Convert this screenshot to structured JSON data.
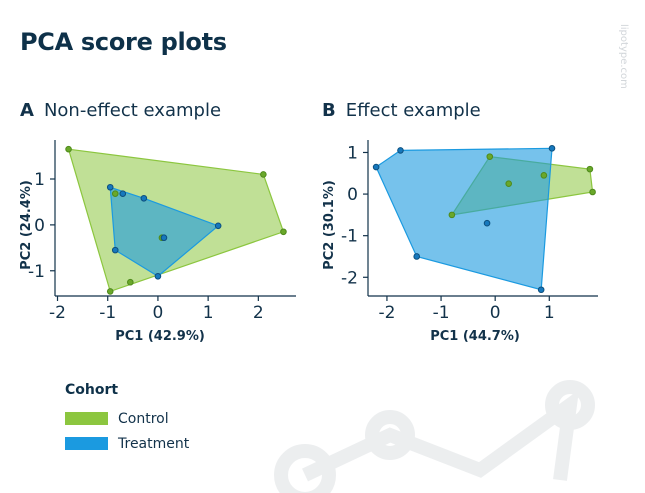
{
  "title": "PCA score plots",
  "watermark": "lipotype.com",
  "colors": {
    "control": "#8cc63f",
    "treatment": "#1b9ae0",
    "axis": "#12324a",
    "text": "#12324a"
  },
  "legend": {
    "title": "Cohort",
    "items": [
      {
        "label": "Control",
        "color": "#8cc63f"
      },
      {
        "label": "Treatment",
        "color": "#1b9ae0"
      }
    ]
  },
  "chart_data": [
    {
      "type": "scatter",
      "panel_letter": "A",
      "title": "Non-effect example",
      "xlabel": "PC1 (42.9%)",
      "ylabel": "PC2 (24.4%)",
      "xlim": [
        -2.05,
        2.75
      ],
      "ylim": [
        -1.55,
        1.85
      ],
      "xticks": [
        -2,
        -1,
        0,
        1,
        2
      ],
      "yticks": [
        1,
        0,
        -1
      ],
      "grid": false,
      "series": [
        {
          "name": "Control",
          "hull": true,
          "x": [
            -1.78,
            2.1,
            2.5,
            -0.95,
            -0.55,
            -0.85,
            0.08
          ],
          "y": [
            1.65,
            1.1,
            -0.15,
            -1.45,
            -1.25,
            0.68,
            -0.28
          ]
        },
        {
          "name": "Treatment",
          "hull": true,
          "x": [
            -0.95,
            -0.28,
            1.2,
            0.0,
            -0.85,
            -0.7,
            0.12
          ],
          "y": [
            0.82,
            0.58,
            -0.02,
            -1.12,
            -0.55,
            0.68,
            -0.28
          ]
        }
      ]
    },
    {
      "type": "scatter",
      "panel_letter": "B",
      "title": "Effect example",
      "xlabel": "PC1 (44.7%)",
      "ylabel": "PC2 (30.1%)",
      "xlim": [
        -2.35,
        1.9
      ],
      "ylim": [
        -2.45,
        1.3
      ],
      "xticks": [
        -2,
        -1,
        0,
        1
      ],
      "yticks": [
        1,
        0,
        -1,
        -2
      ],
      "grid": false,
      "series": [
        {
          "name": "Control",
          "hull": true,
          "x": [
            -0.8,
            -0.1,
            1.8,
            1.75,
            0.25,
            0.9
          ],
          "y": [
            -0.5,
            0.9,
            0.05,
            0.6,
            0.25,
            0.45
          ]
        },
        {
          "name": "Treatment",
          "hull": true,
          "x": [
            -2.2,
            -1.75,
            1.05,
            0.85,
            -1.45,
            -0.15
          ],
          "y": [
            0.65,
            1.05,
            1.1,
            -2.3,
            -1.5,
            -0.7
          ]
        }
      ]
    }
  ]
}
